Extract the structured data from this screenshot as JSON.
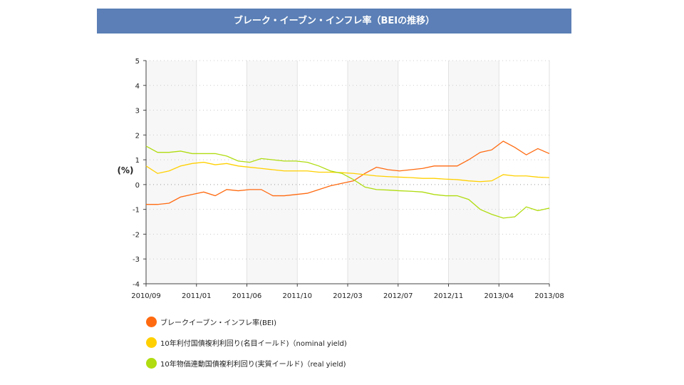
{
  "title": "ブレーク・イーブン・インフレ率（BEIの推移）",
  "chart_data": {
    "type": "line",
    "title": "ブレーク・イーブン・インフレ率（BEIの推移）",
    "ylabel": "(%)",
    "xlabel": "",
    "ylim": [
      -4,
      5
    ],
    "yticks": [
      5,
      4,
      3,
      2,
      1,
      0,
      -1,
      -2,
      -3,
      -4
    ],
    "xtick_labels": [
      "2010/09",
      "2011/01",
      "2011/06",
      "2011/10",
      "2012/03",
      "2012/07",
      "2012/11",
      "2013/04",
      "2013/08"
    ],
    "grid": true,
    "legend_position": "bottom",
    "x": [
      "2010/09",
      "2010/10",
      "2010/11",
      "2010/12",
      "2011/01",
      "2011/02",
      "2011/03",
      "2011/04",
      "2011/05",
      "2011/06",
      "2011/07",
      "2011/08",
      "2011/09",
      "2011/10",
      "2011/11",
      "2011/12",
      "2012/01",
      "2012/02",
      "2012/03",
      "2012/04",
      "2012/05",
      "2012/06",
      "2012/07",
      "2012/08",
      "2012/09",
      "2012/10",
      "2012/11",
      "2012/12",
      "2013/01",
      "2013/02",
      "2013/03",
      "2013/04",
      "2013/05",
      "2013/06",
      "2013/07",
      "2013/08"
    ],
    "series": [
      {
        "name": "ブレークイーブン・インフレ率(BEI)",
        "color": "#ff6a10",
        "values": [
          -0.8,
          -0.8,
          -0.75,
          -0.5,
          -0.4,
          -0.3,
          -0.45,
          -0.2,
          -0.25,
          -0.2,
          -0.2,
          -0.45,
          -0.45,
          -0.4,
          -0.35,
          -0.2,
          -0.05,
          0.05,
          0.15,
          0.45,
          0.7,
          0.6,
          0.55,
          0.6,
          0.65,
          0.75,
          0.75,
          0.75,
          1.0,
          1.3,
          1.4,
          1.75,
          1.5,
          1.2,
          1.45,
          1.25
        ]
      },
      {
        "name": "10年利付国債複利利回り(名目イールド)（nominal yield)",
        "color": "#ffd000",
        "values": [
          0.75,
          0.45,
          0.55,
          0.75,
          0.85,
          0.9,
          0.8,
          0.85,
          0.75,
          0.7,
          0.65,
          0.6,
          0.55,
          0.55,
          0.55,
          0.5,
          0.5,
          0.48,
          0.45,
          0.4,
          0.35,
          0.32,
          0.3,
          0.28,
          0.25,
          0.25,
          0.22,
          0.2,
          0.15,
          0.12,
          0.15,
          0.4,
          0.35,
          0.35,
          0.3,
          0.28
        ]
      },
      {
        "name": "10年物価連動国債複利利回り(実質イールド)（real yield)",
        "color": "#b0dc10",
        "values": [
          1.55,
          1.3,
          1.3,
          1.35,
          1.25,
          1.25,
          1.25,
          1.15,
          0.95,
          0.9,
          1.05,
          1.0,
          0.95,
          0.95,
          0.9,
          0.75,
          0.55,
          0.45,
          0.2,
          -0.1,
          -0.2,
          -0.22,
          -0.25,
          -0.27,
          -0.3,
          -0.4,
          -0.45,
          -0.45,
          -0.6,
          -1.0,
          -1.2,
          -1.35,
          -1.3,
          -0.9,
          -1.05,
          -0.95
        ]
      }
    ]
  }
}
